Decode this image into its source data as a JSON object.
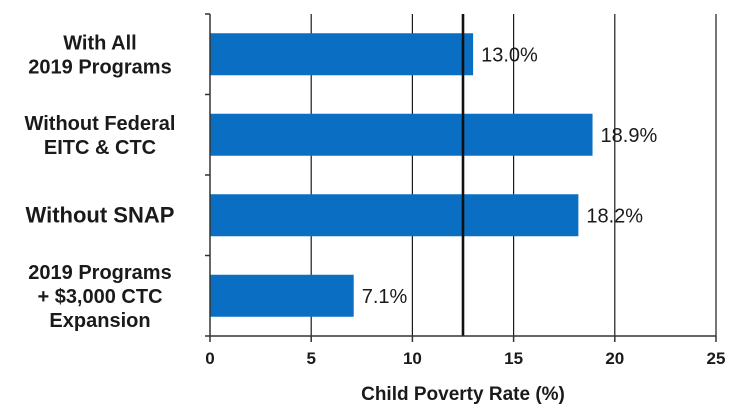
{
  "chart_data": {
    "type": "bar",
    "orientation": "horizontal",
    "categories": [
      [
        "With All",
        "2019 Programs"
      ],
      [
        "Without Federal",
        "EITC & CTC"
      ],
      [
        "Without SNAP"
      ],
      [
        "2019 Programs",
        "+ $3,000 CTC",
        "Expansion"
      ]
    ],
    "values": [
      13.0,
      18.9,
      18.2,
      7.1
    ],
    "data_labels": [
      "13.0%",
      "18.9%",
      "18.2%",
      "7.1%"
    ],
    "xlabel": "Child Poverty Rate (%)",
    "ylabel": "",
    "xlim": [
      0,
      25
    ],
    "x_ticks": [
      0,
      5,
      10,
      15,
      20,
      25
    ],
    "grid": "vertical",
    "reference_line": 12.5,
    "bar_color": "#0a6fc2",
    "grid_color": "#1a1a1a"
  }
}
